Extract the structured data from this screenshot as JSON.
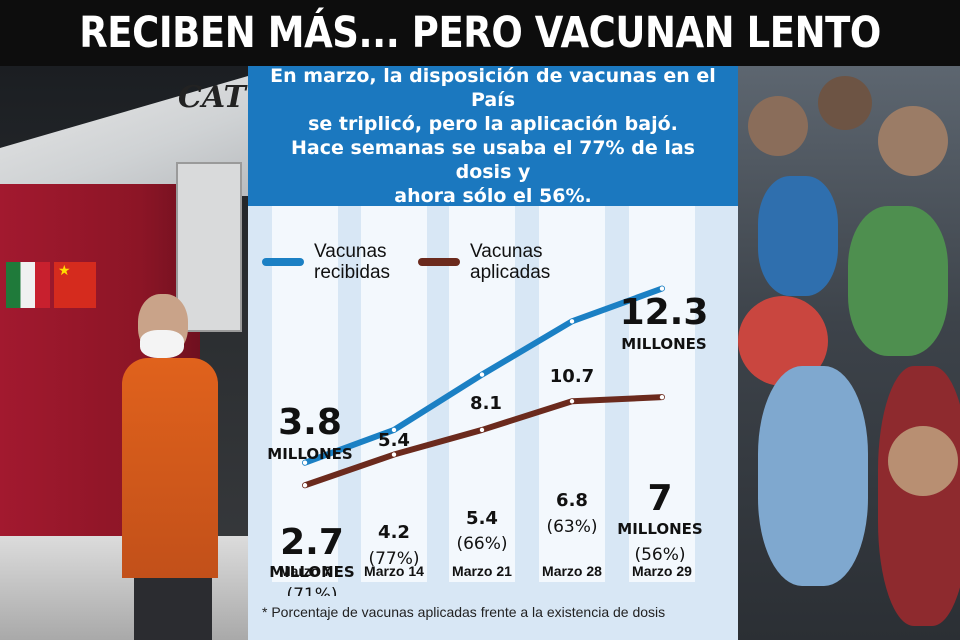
{
  "headline": "RECIBEN MÁS... PERO VACUNAN LENTO",
  "intro": [
    "En marzo, la disposición de vacunas en el País",
    "se triplicó, pero la aplicación bajó.",
    "Hace semanas se usaba el 77% de las dosis y",
    "ahora sólo el 56%."
  ],
  "photo_left": {
    "truck_logo": "CAT"
  },
  "note": "* Porcentaje de vacunas aplicadas frente a la existencia de dosis",
  "colors": {
    "received": "#1b80c4",
    "applied": "#6b2a1d",
    "banner": "#1b78bf",
    "panel": "#d8e7f5",
    "column": "#f3f8fd"
  },
  "chart_data": {
    "type": "line",
    "categories": [
      "Marzo 7",
      "Marzo 14",
      "Marzo 21",
      "Marzo 28",
      "Marzo 29"
    ],
    "series": [
      {
        "name": "Vacunas recibidas",
        "legend_lines": [
          "Vacunas",
          "recibidas"
        ],
        "color": "#1b80c4",
        "values": [
          3.8,
          5.4,
          8.1,
          10.7,
          12.3
        ],
        "labels": [
          "3.8",
          "5.4",
          "8.1",
          "10.7",
          "12.3"
        ],
        "unit_labels": [
          "MILLONES",
          "",
          "",
          "",
          "MILLONES"
        ]
      },
      {
        "name": "Vacunas aplicadas",
        "legend_lines": [
          "Vacunas",
          "aplicadas"
        ],
        "color": "#6b2a1d",
        "values": [
          2.7,
          4.2,
          5.4,
          6.8,
          7
        ],
        "labels": [
          "2.7",
          "4.2",
          "5.4",
          "6.8",
          "7"
        ],
        "unit_labels": [
          "MILLONES",
          "",
          "",
          "",
          "MILLONES"
        ],
        "percent_labels": [
          "(71%)",
          "(77%)",
          "(66%)",
          "(63%)",
          "(56%)"
        ]
      }
    ],
    "unit": "MILLONES",
    "ylim": [
      0,
      14
    ],
    "grid": false,
    "legend_position": "top-left"
  }
}
